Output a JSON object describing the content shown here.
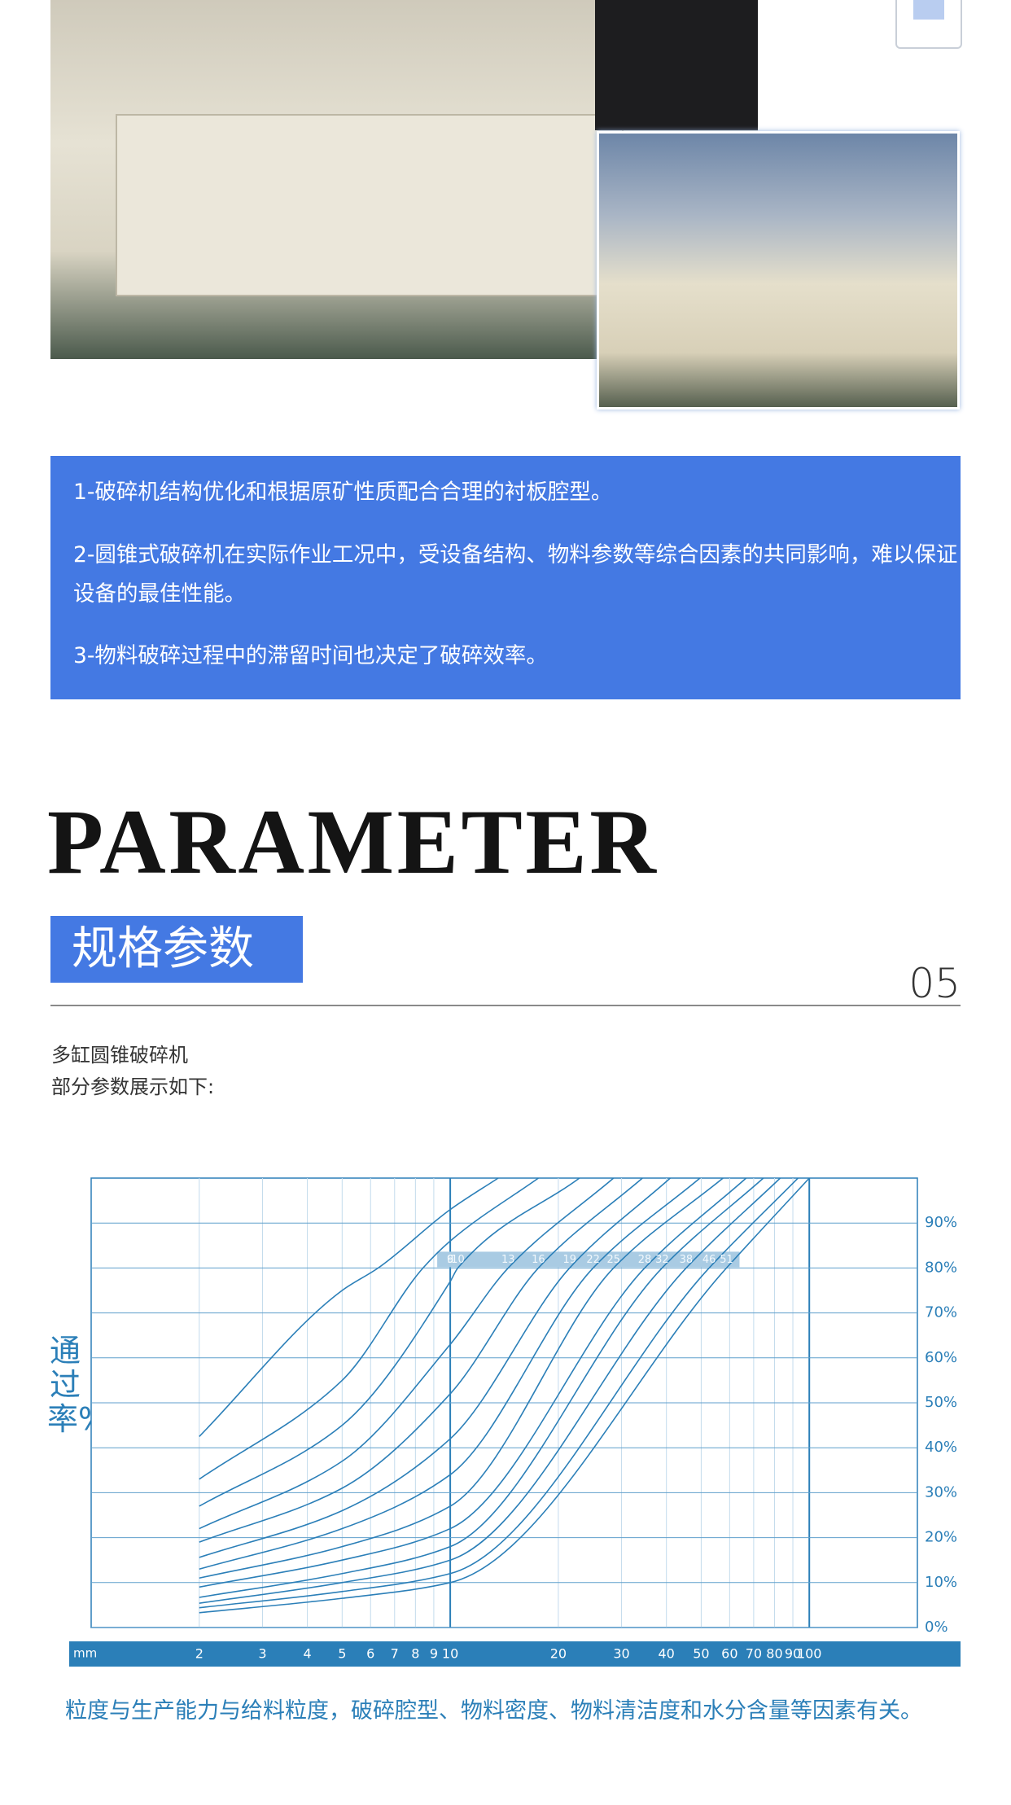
{
  "intro": {
    "points": [
      "1-破碎机结构优化和根据原矿性质配合合理的衬板腔型。",
      "2-圆锥式破碎机在实际作业工况中，受设备结构、物料参数等综合因素的共同影响，难以保证设备的最佳性能。",
      "3-物料破碎过程中的滞留时间也决定了破碎效率。"
    ]
  },
  "parameter": {
    "title_en": "PARAMETER",
    "title_cn": "规格参数",
    "number": "05"
  },
  "description": [
    "多缸圆锥破碎机",
    "部分参数展示如下:"
  ],
  "chart_data": {
    "type": "line",
    "y_label": "通过率%",
    "x_label": "mm",
    "xscale": "log",
    "color": "#2b7fb8",
    "xlim": [
      1,
      200
    ],
    "xticks": [
      2,
      3,
      4,
      5,
      6,
      7,
      8,
      9,
      10,
      20,
      30,
      40,
      50,
      60,
      70,
      80,
      90,
      100
    ],
    "xmajor": [
      10,
      100
    ],
    "ylim": [
      0,
      100
    ],
    "yticks": [
      {
        "value": 0,
        "label": "0%"
      },
      {
        "value": 10,
        "label": "10%"
      },
      {
        "value": 20,
        "label": "20%"
      },
      {
        "value": 30,
        "label": "30%"
      },
      {
        "value": 40,
        "label": "40%"
      },
      {
        "value": 50,
        "label": "50%"
      },
      {
        "value": 60,
        "label": "60%"
      },
      {
        "value": 70,
        "label": "70%"
      },
      {
        "value": 80,
        "label": "80%"
      },
      {
        "value": 90,
        "label": "90%"
      }
    ],
    "grid": true,
    "series": [
      {
        "name": "6",
        "x": [
          2,
          5,
          6.3,
          10,
          13.6
        ],
        "values": [
          42.5,
          75,
          80,
          93,
          100
        ]
      },
      {
        "name": "9",
        "x": [
          2,
          5,
          8.4,
          10,
          17.6
        ],
        "values": [
          33,
          55,
          80,
          86,
          100
        ]
      },
      {
        "name": "10",
        "x": [
          2,
          5,
          10,
          10.5,
          22.9
        ],
        "values": [
          27,
          45,
          77,
          80,
          100
        ]
      },
      {
        "name": "13",
        "x": [
          2,
          5,
          10,
          14.5,
          28.5
        ],
        "values": [
          22,
          37,
          63,
          80,
          100
        ]
      },
      {
        "name": "16",
        "x": [
          2,
          5,
          10,
          17.6,
          34.3
        ],
        "values": [
          19,
          31,
          52,
          80,
          100
        ]
      },
      {
        "name": "19",
        "x": [
          2,
          5,
          10,
          21.5,
          41
        ],
        "values": [
          15.6,
          26,
          42,
          80,
          100
        ]
      },
      {
        "name": "22",
        "x": [
          2,
          5,
          10,
          25,
          49.6
        ],
        "values": [
          13,
          22,
          34,
          80,
          100
        ]
      },
      {
        "name": "25",
        "x": [
          2,
          5,
          10,
          28.5,
          57.5
        ],
        "values": [
          11,
          18,
          27,
          80,
          100
        ]
      },
      {
        "name": "28",
        "x": [
          2,
          5,
          10,
          34.8,
          66.7
        ],
        "values": [
          9,
          15,
          22,
          80,
          100
        ]
      },
      {
        "name": "32",
        "x": [
          2,
          5,
          10,
          38.9,
          74.5
        ],
        "values": [
          6.7,
          12,
          18,
          80,
          100
        ]
      },
      {
        "name": "38",
        "x": [
          2,
          5,
          10,
          45.4,
          83
        ],
        "values": [
          5.4,
          10,
          15,
          80,
          100
        ]
      },
      {
        "name": "46",
        "x": [
          2,
          5,
          10,
          52.6,
          93
        ],
        "values": [
          4.4,
          8,
          12,
          80,
          100
        ]
      },
      {
        "name": "51",
        "x": [
          2,
          5,
          10,
          58.8,
          100
        ],
        "values": [
          3.3,
          6.5,
          10,
          80,
          100
        ]
      }
    ]
  },
  "caption": "粒度与生产能力与给料粒度，破碎腔型、物料密度、物料清洁度和水分含量等因素有关。"
}
